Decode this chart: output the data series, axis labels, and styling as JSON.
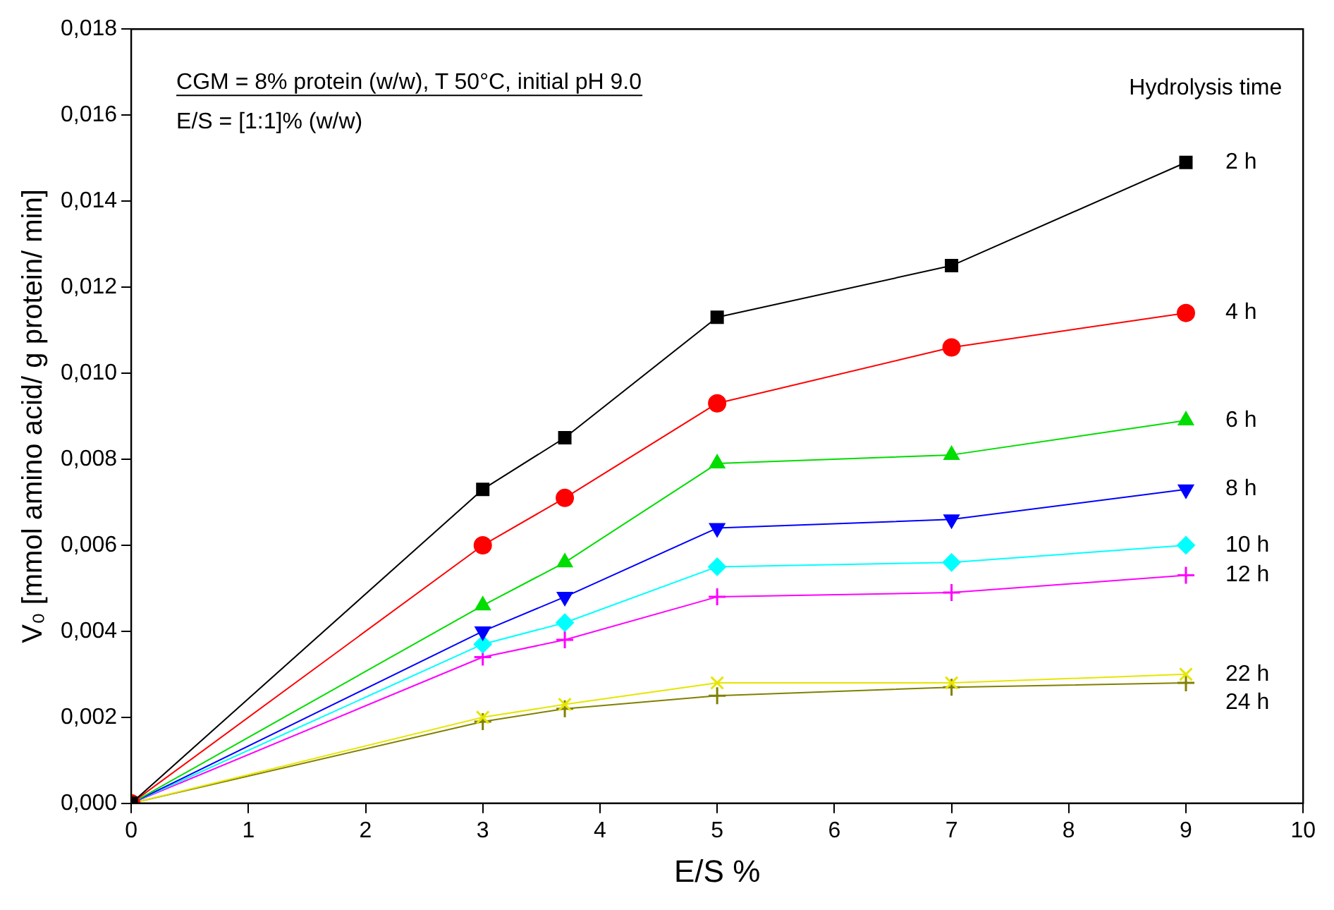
{
  "chart_data": {
    "type": "line",
    "xlabel": "E/S %",
    "ylabel": "V₀ [mmol amino acid/ g protein/ min]",
    "legend_title": "Hydrolysis time",
    "annotations": [
      "CGM = 8% protein (w/w), T 50°C, initial pH 9.0",
      "E/S = [1:1]% (w/w)"
    ],
    "x": [
      0,
      3,
      3.7,
      5,
      7,
      9
    ],
    "series": [
      {
        "name": "2 h",
        "color": "#000000",
        "marker": "square",
        "values": [
          0,
          0.0073,
          0.0085,
          0.0113,
          0.0125,
          0.0149
        ]
      },
      {
        "name": "4 h",
        "color": "#ff0000",
        "marker": "circle",
        "values": [
          0,
          0.006,
          0.0071,
          0.0093,
          0.0106,
          0.0114
        ]
      },
      {
        "name": "6 h",
        "color": "#00dd00",
        "marker": "triangle",
        "values": [
          0,
          0.0046,
          0.0056,
          0.0079,
          0.0081,
          0.0089
        ]
      },
      {
        "name": "8 h",
        "color": "#0000ff",
        "marker": "triangle-down",
        "values": [
          0,
          0.004,
          0.0048,
          0.0064,
          0.0066,
          0.0073
        ]
      },
      {
        "name": "10 h",
        "color": "#00ffff",
        "marker": "diamond",
        "values": [
          0,
          0.0037,
          0.0042,
          0.0055,
          0.0056,
          0.006
        ]
      },
      {
        "name": "12 h",
        "color": "#ff00ff",
        "marker": "cross",
        "values": [
          0,
          0.0034,
          0.0038,
          0.0048,
          0.0049,
          0.0053
        ]
      },
      {
        "name": "22 h",
        "color": "#e6e600",
        "marker": "x",
        "values": [
          0,
          0.002,
          0.0023,
          0.0028,
          0.0028,
          0.003
        ]
      },
      {
        "name": "24 h",
        "color": "#808000",
        "marker": "cross",
        "values": [
          0,
          0.0019,
          0.0022,
          0.0025,
          0.0027,
          0.0028
        ]
      }
    ],
    "xlim": [
      0,
      10
    ],
    "xticks": [
      0,
      1,
      2,
      3,
      4,
      5,
      6,
      7,
      8,
      9,
      10
    ],
    "ylim": [
      0,
      0.018
    ],
    "yticks": [
      {
        "value": 0,
        "label": "0,000"
      },
      {
        "value": 0.002,
        "label": "0,002"
      },
      {
        "value": 0.004,
        "label": "0,004"
      },
      {
        "value": 0.006,
        "label": "0,006"
      },
      {
        "value": 0.008,
        "label": "0,008"
      },
      {
        "value": 0.01,
        "label": "0,010"
      },
      {
        "value": 0.012,
        "label": "0,012"
      },
      {
        "value": 0.014,
        "label": "0,014"
      },
      {
        "value": 0.016,
        "label": "0,016"
      },
      {
        "value": 0.018,
        "label": "0,018"
      }
    ],
    "grid": false,
    "line_style": "solid"
  }
}
